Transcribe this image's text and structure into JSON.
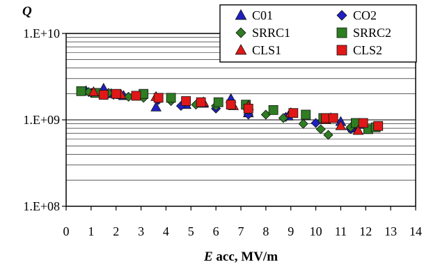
{
  "chart_data": {
    "type": "scatter",
    "title": "",
    "ylabel": "Q",
    "xlabel": {
      "symbol": "E",
      "rest": " acc, MV/m"
    },
    "xlim": [
      0,
      14
    ],
    "ylim": [
      100000000,
      10000000000
    ],
    "yscale": "log",
    "x_ticks": [
      "0",
      "1",
      "2",
      "3",
      "4",
      "5",
      "6",
      "7",
      "8",
      "9",
      "10",
      "11",
      "12",
      "13",
      "14"
    ],
    "y_ticks": [
      "1.E+08",
      "1.E+09",
      "1.E+10"
    ],
    "grid": true,
    "legend_position": "top-right",
    "series": [
      {
        "name": "C01",
        "marker": "triangle",
        "color": "#2020c0",
        "points": [
          [
            0.8,
            2150000000.0
          ],
          [
            1.5,
            2300000000.0
          ],
          [
            1.8,
            2000000000.0
          ],
          [
            2.3,
            1900000000.0
          ],
          [
            3.6,
            1400000000.0
          ],
          [
            4.8,
            1500000000.0
          ],
          [
            5.5,
            1550000000.0
          ],
          [
            6.6,
            1750000000.0
          ],
          [
            7.3,
            1200000000.0
          ],
          [
            8.9,
            1100000000.0
          ],
          [
            10.6,
            1050000000.0
          ],
          [
            11.0,
            950000000.0
          ],
          [
            11.5,
            800000000.0
          ],
          [
            11.8,
            880000000.0
          ]
        ]
      },
      {
        "name": "CO2",
        "marker": "diamond",
        "color": "#2020c0",
        "points": [
          [
            1.0,
            2050000000.0
          ],
          [
            1.9,
            1950000000.0
          ],
          [
            3.7,
            1700000000.0
          ],
          [
            4.6,
            1450000000.0
          ],
          [
            6.0,
            1350000000.0
          ],
          [
            7.3,
            1150000000.0
          ],
          [
            8.8,
            1080000000.0
          ],
          [
            10.0,
            920000000.0
          ],
          [
            10.4,
            1020000000.0
          ],
          [
            11.4,
            780000000.0
          ]
        ]
      },
      {
        "name": "SRRC1",
        "marker": "diamond",
        "color": "#2e7d22",
        "points": [
          [
            0.9,
            2100000000.0
          ],
          [
            1.7,
            2050000000.0
          ],
          [
            2.5,
            1850000000.0
          ],
          [
            3.1,
            1800000000.0
          ],
          [
            4.2,
            1650000000.0
          ],
          [
            5.2,
            1500000000.0
          ],
          [
            6.0,
            1450000000.0
          ],
          [
            7.3,
            1300000000.0
          ],
          [
            8.0,
            1150000000.0
          ],
          [
            8.7,
            1050000000.0
          ],
          [
            9.5,
            900000000.0
          ],
          [
            10.2,
            780000000.0
          ],
          [
            10.5,
            670000000.0
          ],
          [
            11.4,
            820000000.0
          ]
        ]
      },
      {
        "name": "SRRC2",
        "marker": "square",
        "color": "#2e7d22",
        "points": [
          [
            0.6,
            2150000000.0
          ],
          [
            1.2,
            2050000000.0
          ],
          [
            3.1,
            2000000000.0
          ],
          [
            4.2,
            1800000000.0
          ],
          [
            6.1,
            1600000000.0
          ],
          [
            7.2,
            1500000000.0
          ],
          [
            8.3,
            1300000000.0
          ],
          [
            9.6,
            1150000000.0
          ],
          [
            10.3,
            1050000000.0
          ],
          [
            11.6,
            920000000.0
          ],
          [
            12.1,
            780000000.0
          ],
          [
            12.4,
            820000000.0
          ]
        ]
      },
      {
        "name": "CLS1",
        "marker": "triangle",
        "color": "#e01818",
        "points": [
          [
            1.1,
            2100000000.0
          ],
          [
            2.2,
            1950000000.0
          ],
          [
            3.6,
            1850000000.0
          ],
          [
            5.5,
            1600000000.0
          ],
          [
            6.7,
            1450000000.0
          ],
          [
            7.3,
            1450000000.0
          ],
          [
            9.0,
            1200000000.0
          ],
          [
            10.4,
            1000000000.0
          ],
          [
            11.0,
            850000000.0
          ],
          [
            11.7,
            750000000.0
          ]
        ]
      },
      {
        "name": "CLS2",
        "marker": "square",
        "color": "#e01818",
        "points": [
          [
            1.5,
            1950000000.0
          ],
          [
            2.0,
            2000000000.0
          ],
          [
            2.8,
            1900000000.0
          ],
          [
            3.7,
            1800000000.0
          ],
          [
            4.8,
            1650000000.0
          ],
          [
            5.4,
            1600000000.0
          ],
          [
            6.6,
            1500000000.0
          ],
          [
            7.3,
            1350000000.0
          ],
          [
            9.1,
            1200000000.0
          ],
          [
            10.4,
            1050000000.0
          ],
          [
            10.7,
            1050000000.0
          ],
          [
            11.9,
            920000000.0
          ],
          [
            12.5,
            850000000.0
          ]
        ]
      }
    ]
  }
}
